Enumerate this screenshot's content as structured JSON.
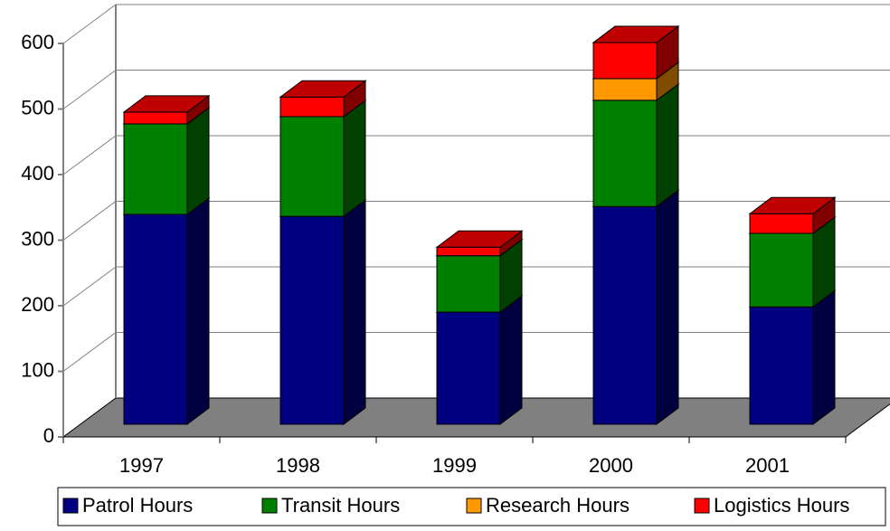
{
  "chart_data": {
    "type": "bar3d_stacked",
    "categories": [
      "1997",
      "1998",
      "1999",
      "2000",
      "2001"
    ],
    "series": [
      {
        "name": "Patrol Hours",
        "color": "#000080",
        "values": [
          320,
          317,
          171,
          332,
          179
        ]
      },
      {
        "name": "Transit Hours",
        "color": "#008000",
        "values": [
          138,
          152,
          86,
          162,
          112
        ]
      },
      {
        "name": "Research Hours",
        "color": "#ff9900",
        "values": [
          0,
          0,
          0,
          33,
          0
        ]
      },
      {
        "name": "Logistics Hours",
        "color": "#ff0000",
        "values": [
          18,
          30,
          13,
          55,
          30
        ]
      }
    ],
    "ylim": [
      0,
      600
    ],
    "yticks": [
      0,
      100,
      200,
      300,
      400,
      500,
      600
    ],
    "grid": true,
    "legend": "bottom"
  }
}
